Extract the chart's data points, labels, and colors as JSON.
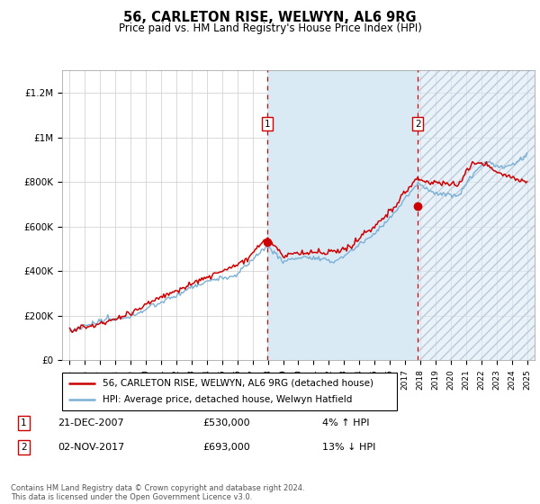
{
  "title": "56, CARLETON RISE, WELWYN, AL6 9RG",
  "subtitle": "Price paid vs. HM Land Registry's House Price Index (HPI)",
  "legend_line1": "56, CARLETON RISE, WELWYN, AL6 9RG (detached house)",
  "legend_line2": "HPI: Average price, detached house, Welwyn Hatfield",
  "sale1_date": "21-DEC-2007",
  "sale1_price": "£530,000",
  "sale1_hpi": "4% ↑ HPI",
  "sale2_date": "02-NOV-2017",
  "sale2_price": "£693,000",
  "sale2_hpi": "13% ↓ HPI",
  "footer": "Contains HM Land Registry data © Crown copyright and database right 2024.\nThis data is licensed under the Open Government Licence v3.0.",
  "hpi_line_color": "#7ab0d4",
  "price_color": "#cc0000",
  "sale1_x": 2007.97,
  "sale1_y": 530000,
  "sale2_x": 2017.84,
  "sale2_y": 693000,
  "ylim": [
    0,
    1300000
  ],
  "xlim": [
    1994.5,
    2025.5
  ],
  "shaded_color": "#daeaf5",
  "hatch_color": "#c0c8d8"
}
